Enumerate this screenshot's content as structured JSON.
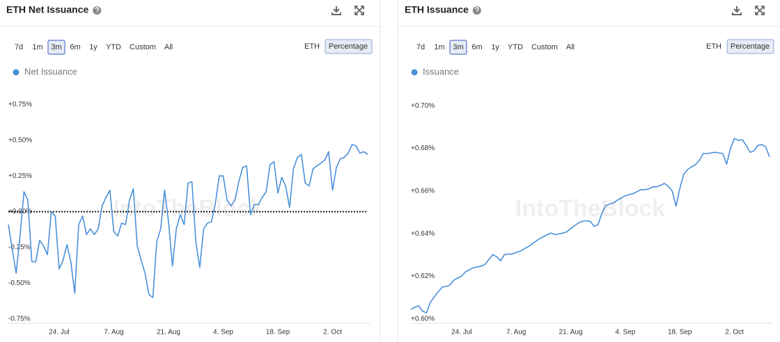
{
  "chart_data": [
    {
      "type": "line",
      "title": "ETH Net Issuance",
      "range_buttons": [
        "7d",
        "1m",
        "3m",
        "6m",
        "1y",
        "YTD",
        "Custom",
        "All"
      ],
      "selected_range": 2,
      "unit_buttons": [
        "ETH",
        "Percentage"
      ],
      "selected_unit": 1,
      "watermark": "IntoTheBlock",
      "categories": [
        null,
        null,
        null,
        null,
        null,
        null,
        null,
        null,
        null,
        null,
        null,
        null,
        null,
        "24. Jul",
        null,
        null,
        null,
        null,
        null,
        null,
        null,
        null,
        null,
        null,
        null,
        null,
        null,
        "7. Aug",
        null,
        null,
        null,
        null,
        null,
        null,
        null,
        null,
        null,
        null,
        null,
        null,
        null,
        "21. Aug",
        null,
        null,
        null,
        null,
        null,
        null,
        null,
        null,
        null,
        null,
        null,
        null,
        null,
        "4. Sep",
        null,
        null,
        null,
        null,
        null,
        null,
        null,
        null,
        null,
        null,
        null,
        null,
        null,
        "18. Sep",
        null,
        null,
        null,
        null,
        null,
        null,
        null,
        null,
        null,
        null,
        null,
        null,
        null,
        "2. Oct",
        null,
        null,
        null,
        null,
        null,
        null,
        null,
        null,
        null
      ],
      "series": [
        {
          "name": "Net Issuance",
          "color": "#4a90d9",
          "values": [
            -0.09,
            -0.26,
            -0.43,
            -0.17,
            0.14,
            0.08,
            -0.35,
            -0.35,
            -0.2,
            -0.24,
            -0.3,
            0.0,
            -0.03,
            -0.4,
            -0.34,
            -0.23,
            -0.35,
            -0.57,
            -0.09,
            -0.03,
            -0.16,
            -0.12,
            -0.16,
            -0.12,
            0.04,
            0.1,
            0.15,
            -0.14,
            -0.17,
            -0.08,
            -0.09,
            0.08,
            0.16,
            -0.24,
            -0.34,
            -0.43,
            -0.58,
            -0.6,
            -0.21,
            -0.12,
            0.15,
            -0.07,
            -0.38,
            -0.12,
            -0.02,
            -0.09,
            0.2,
            0.21,
            -0.21,
            -0.39,
            -0.12,
            -0.08,
            -0.07,
            0.06,
            0.25,
            0.25,
            0.08,
            0.04,
            0.08,
            0.21,
            0.31,
            0.32,
            -0.02,
            0.05,
            0.05,
            0.1,
            0.14,
            0.33,
            0.35,
            0.13,
            0.24,
            0.18,
            0.03,
            0.3,
            0.38,
            0.4,
            0.2,
            0.18,
            0.3,
            0.32,
            0.34,
            0.36,
            0.42,
            0.15,
            0.31,
            0.37,
            0.38,
            0.41,
            0.47,
            0.46,
            0.41,
            0.42,
            0.4
          ]
        }
      ],
      "ylim": [
        -0.78,
        0.8
      ],
      "yticks": [
        {
          "value": -0.75,
          "label": "-0.75%"
        },
        {
          "value": -0.5,
          "label": "-0.50%"
        },
        {
          "value": -0.25,
          "label": "-0.25%"
        },
        {
          "value": 0,
          "label": "+0.00%"
        },
        {
          "value": 0.25,
          "label": "+0.25%"
        },
        {
          "value": 0.5,
          "label": "+0.50%"
        },
        {
          "value": 0.75,
          "label": "+0.75%"
        }
      ],
      "zero_line": 0,
      "grid": false
    },
    {
      "type": "line",
      "title": "ETH Issuance",
      "range_buttons": [
        "7d",
        "1m",
        "3m",
        "6m",
        "1y",
        "YTD",
        "Custom",
        "All"
      ],
      "selected_range": 2,
      "unit_buttons": [
        "ETH",
        "Percentage"
      ],
      "selected_unit": 1,
      "watermark": "IntoTheBlock",
      "categories": [
        null,
        null,
        null,
        null,
        null,
        null,
        null,
        null,
        null,
        null,
        null,
        null,
        null,
        "24. Jul",
        null,
        null,
        null,
        null,
        null,
        null,
        null,
        null,
        null,
        null,
        null,
        null,
        null,
        "7. Aug",
        null,
        null,
        null,
        null,
        null,
        null,
        null,
        null,
        null,
        null,
        null,
        null,
        null,
        "21. Aug",
        null,
        null,
        null,
        null,
        null,
        null,
        null,
        null,
        null,
        null,
        null,
        null,
        null,
        "4. Sep",
        null,
        null,
        null,
        null,
        null,
        null,
        null,
        null,
        null,
        null,
        null,
        null,
        null,
        "18. Sep",
        null,
        null,
        null,
        null,
        null,
        null,
        null,
        null,
        null,
        null,
        null,
        null,
        null,
        "2. Oct",
        null,
        null,
        null,
        null,
        null,
        null,
        null,
        null,
        null
      ],
      "series": [
        {
          "name": "Issuance",
          "color": "#4a90d9",
          "values": [
            0.6045,
            0.6055,
            0.6062,
            0.6036,
            0.6029,
            0.6078,
            0.6104,
            0.6127,
            0.6149,
            0.6153,
            0.6159,
            0.6182,
            0.6192,
            0.6201,
            0.6221,
            0.6231,
            0.624,
            0.6244,
            0.6247,
            0.6256,
            0.6279,
            0.6302,
            0.6292,
            0.6273,
            0.6302,
            0.6305,
            0.6305,
            0.6312,
            0.6318,
            0.6328,
            0.6338,
            0.6351,
            0.6364,
            0.6377,
            0.6386,
            0.6396,
            0.6403,
            0.6396,
            0.6399,
            0.6403,
            0.6409,
            0.6425,
            0.6438,
            0.6451,
            0.6458,
            0.6461,
            0.6458,
            0.6435,
            0.6442,
            0.6497,
            0.6532,
            0.6539,
            0.6545,
            0.6558,
            0.6568,
            0.6578,
            0.6584,
            0.6588,
            0.6597,
            0.6607,
            0.6607,
            0.661,
            0.662,
            0.662,
            0.6627,
            0.6636,
            0.6623,
            0.6601,
            0.6529,
            0.6614,
            0.6679,
            0.6701,
            0.6714,
            0.6724,
            0.6744,
            0.6776,
            0.6776,
            0.6779,
            0.6782,
            0.6779,
            0.6776,
            0.6727,
            0.6802,
            0.6847,
            0.6838,
            0.6841,
            0.6815,
            0.6782,
            0.6789,
            0.6815,
            0.6818,
            0.6808,
            0.676
          ]
        }
      ],
      "ylim": [
        0.598,
        0.704
      ],
      "yticks": [
        {
          "value": 0.6,
          "label": "+0.60%"
        },
        {
          "value": 0.62,
          "label": "+0.62%"
        },
        {
          "value": 0.64,
          "label": "+0.64%"
        },
        {
          "value": 0.66,
          "label": "+0.66%"
        },
        {
          "value": 0.68,
          "label": "+0.68%"
        },
        {
          "value": 0.7,
          "label": "+0.70%"
        }
      ],
      "grid": false
    }
  ]
}
